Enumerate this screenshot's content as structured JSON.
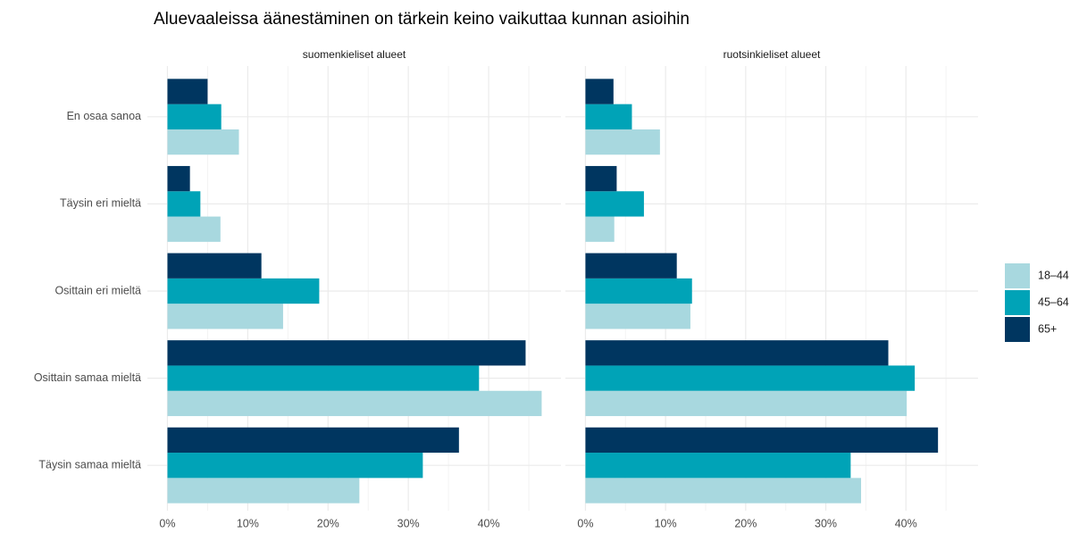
{
  "title": "Aluevaaleissa äänestäminen on tärkein keino vaikuttaa kunnan asioihin",
  "categories": [
    "En osaa sanoa",
    "Täysin eri mieltä",
    "Osittain eri mieltä",
    "Osittain samaa mieltä",
    "Täysin samaa mieltä"
  ],
  "legend": {
    "position": "right",
    "items": [
      {
        "name": "18–44",
        "color": "#a8d8df"
      },
      {
        "name": "45–64",
        "color": "#00a3b7"
      },
      {
        "name": "65+",
        "color": "#003660"
      }
    ]
  },
  "chart_data": [
    {
      "type": "bar",
      "orientation": "horizontal",
      "subtitle": "suomenkieliset alueet",
      "series": [
        {
          "values": [
            8.9,
            6.6,
            14.4,
            46.6,
            23.9
          ]
        },
        {
          "values": [
            6.7,
            4.1,
            18.9,
            38.8,
            31.8
          ]
        },
        {
          "values": [
            5.0,
            2.8,
            11.7,
            44.6,
            36.3
          ]
        }
      ],
      "xlim": [
        -2.5,
        49
      ],
      "xticks": [
        {
          "value": 0,
          "label": "0%"
        },
        {
          "value": 10,
          "label": "10%"
        },
        {
          "value": 20,
          "label": "20%"
        },
        {
          "value": 30,
          "label": "30%"
        },
        {
          "value": 40,
          "label": "40%"
        }
      ],
      "minor_xticks": [
        5,
        15,
        25,
        35,
        45
      ],
      "grid": true
    },
    {
      "type": "bar",
      "orientation": "horizontal",
      "subtitle": "ruotsinkieliset alueet",
      "series": [
        {
          "values": [
            9.3,
            3.6,
            13.1,
            40.1,
            34.4
          ]
        },
        {
          "values": [
            5.8,
            7.3,
            13.3,
            41.1,
            33.1
          ]
        },
        {
          "values": [
            3.5,
            3.9,
            11.4,
            37.8,
            44.0
          ]
        }
      ],
      "xlim": [
        -2.5,
        49
      ],
      "xticks": [
        {
          "value": 0,
          "label": "0%"
        },
        {
          "value": 10,
          "label": "10%"
        },
        {
          "value": 20,
          "label": "20%"
        },
        {
          "value": 30,
          "label": "30%"
        },
        {
          "value": 40,
          "label": "40%"
        }
      ],
      "minor_xticks": [
        5,
        15,
        25,
        35,
        45
      ],
      "grid": true
    }
  ]
}
